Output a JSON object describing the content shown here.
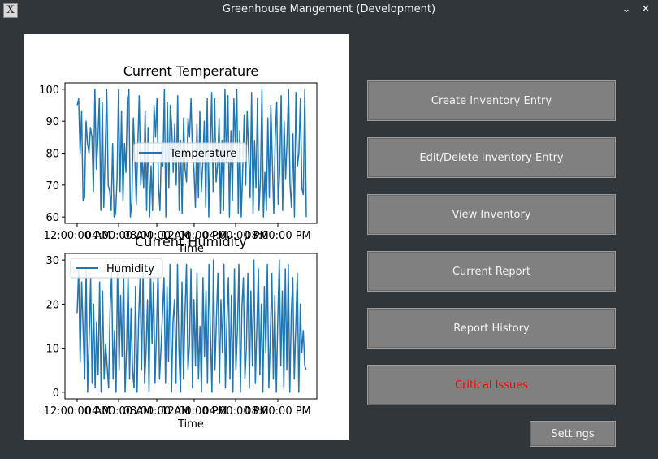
{
  "window": {
    "title": "Greenhouse Mangement (Development)",
    "app_icon_glyph": "X",
    "minimize_glyph": "⌄",
    "close_glyph": "✕"
  },
  "buttons": {
    "create_inventory": "Create Inventory Entry",
    "edit_delete_inventory": "Edit/Delete Inventory Entry",
    "view_inventory": "View Inventory",
    "current_report": "Current Report",
    "report_history": "Report History",
    "critical_issues": "Critical Issues",
    "settings": "Settings"
  },
  "colors": {
    "background": "#31363b",
    "button": "#808080",
    "critical_text": "#ff0000",
    "series_line": "#1f77b4"
  },
  "chart_data": [
    {
      "type": "line",
      "title": "Current Temperature",
      "xlabel": "Time",
      "ylabel": "",
      "ylim": [
        58,
        102
      ],
      "yticks": [
        60,
        70,
        80,
        90,
        100
      ],
      "xtick_labels": [
        "12:00:00 AM",
        "04:00:00 AM",
        "08:00:00 AM",
        "12:00:00 PM",
        "04:00:00 PM",
        "08:00:00 PM"
      ],
      "legend": "center",
      "series": [
        {
          "name": "Temperature",
          "values": [
            95,
            97,
            80,
            93,
            65,
            66,
            90,
            83,
            80,
            88,
            85,
            68,
            100,
            75,
            84,
            97,
            62,
            96,
            63,
            81,
            100,
            70,
            68,
            62,
            83,
            60,
            61,
            72,
            100,
            68,
            93,
            65,
            83,
            74,
            97,
            100,
            60,
            65,
            91,
            79,
            64,
            82,
            98,
            70,
            78,
            69,
            93,
            62,
            88,
            60,
            76,
            62,
            95,
            85,
            97,
            70,
            62,
            82,
            76,
            100,
            60,
            96,
            69,
            95,
            88,
            74,
            89,
            70,
            98,
            62,
            84,
            61,
            91,
            75,
            71,
            91,
            85,
            97,
            80,
            75,
            63,
            89,
            66,
            93,
            68,
            77,
            90,
            63,
            97,
            60,
            81,
            99,
            68,
            97,
            71,
            76,
            91,
            61,
            84,
            62,
            100,
            77,
            98,
            60,
            87,
            65,
            97,
            83,
            100,
            61,
            87,
            60,
            75,
            92,
            70,
            93,
            80,
            66,
            99,
            61,
            84,
            69,
            97,
            62,
            72,
            100,
            60,
            74,
            62,
            91,
            66,
            95,
            78,
            61,
            85,
            96,
            64,
            74,
            98,
            62,
            90,
            72,
            84,
            100,
            70,
            63,
            86,
            60,
            99,
            76,
            80,
            97,
            69,
            67,
            100,
            60
          ]
        }
      ]
    },
    {
      "type": "line",
      "title": "Current Humidity",
      "xlabel": "Time",
      "ylabel": "",
      "ylim": [
        -1.5,
        31.5
      ],
      "yticks": [
        0,
        10,
        20,
        30
      ],
      "xtick_labels": [
        "12:00:00 AM",
        "04:00:00 AM",
        "08:00:00 AM",
        "12:00:00 PM",
        "04:00:00 PM",
        "08:00:00 PM"
      ],
      "legend": "top-left",
      "series": [
        {
          "name": "Humidity",
          "values": [
            18,
            28,
            7,
            25,
            14,
            3,
            28,
            0,
            12,
            26,
            2,
            20,
            1,
            16,
            4,
            25,
            0,
            23,
            3,
            11,
            6,
            1,
            19,
            27,
            3,
            14,
            0,
            29,
            5,
            22,
            8,
            29,
            0,
            10,
            27,
            3,
            19,
            5,
            1,
            24,
            0,
            16,
            26,
            5,
            27,
            2,
            9,
            21,
            0,
            28,
            11,
            25,
            2,
            14,
            28,
            3,
            10,
            18,
            26,
            2,
            24,
            7,
            29,
            0,
            16,
            21,
            2,
            29,
            9,
            0,
            25,
            3,
            18,
            29,
            5,
            11,
            28,
            1,
            21,
            6,
            27,
            3,
            15,
            0,
            26,
            8,
            23,
            2,
            29,
            13,
            0,
            30,
            5,
            17,
            27,
            2,
            21,
            9,
            29,
            1,
            16,
            26,
            3,
            22,
            0,
            28,
            5,
            14,
            29,
            0,
            19,
            26,
            3,
            10,
            27,
            1,
            23,
            6,
            30,
            2,
            15,
            28,
            4,
            20,
            0,
            24,
            9,
            29,
            1,
            13,
            27,
            3,
            22,
            0,
            17,
            30,
            6,
            23,
            1,
            28,
            5,
            29,
            0,
            18,
            26,
            3,
            15,
            27,
            0,
            20,
            9,
            14,
            6,
            5
          ]
        }
      ]
    }
  ]
}
